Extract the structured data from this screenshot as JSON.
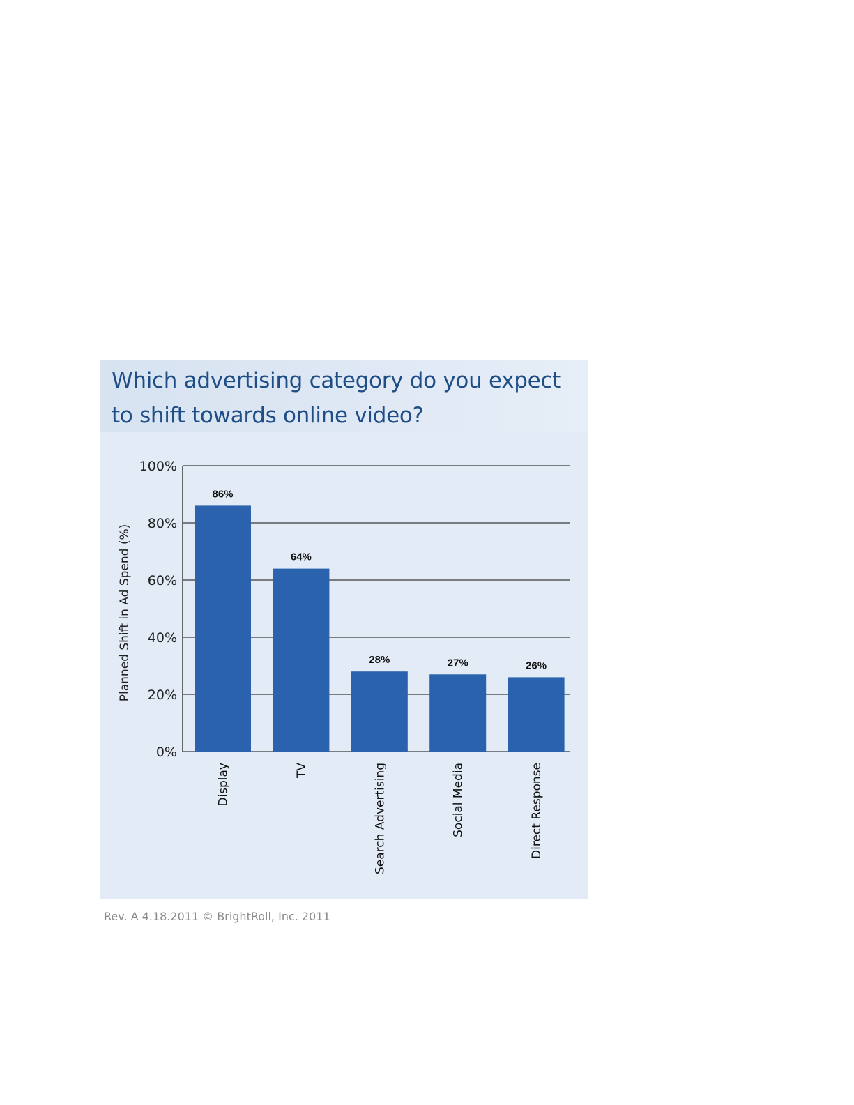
{
  "chart_data": {
    "type": "bar",
    "title": "Which advertising category do you expect to shift towards online video?",
    "ylabel": "Planned Shift in Ad Spend (%)",
    "xlabel": "",
    "ylim": [
      0,
      100
    ],
    "yticks": [
      "0%",
      "20%",
      "40%",
      "60%",
      "80%",
      "100%"
    ],
    "categories": [
      "Display",
      "TV",
      "Search Advertising",
      "Social Media",
      "Direct Response"
    ],
    "values": [
      86,
      64,
      28,
      27,
      26
    ],
    "value_labels": [
      "86%",
      "64%",
      "28%",
      "27%",
      "26%"
    ],
    "grid": true,
    "bar_color": "#2a62ad"
  },
  "footer": "Rev. A 4.18.2011 © BrightRoll, Inc. 2011"
}
